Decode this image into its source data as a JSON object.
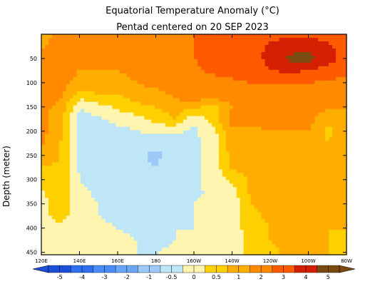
{
  "chart_data": {
    "type": "heatmap",
    "title": "Equatorial Temperature Anomaly (°C)",
    "subtitle": "Pentad centered on 20 SEP 2023",
    "ylabel": "Depth (meter)",
    "xlabel": "",
    "x_range_deg_east": [
      120,
      280
    ],
    "y_range_m": [
      0,
      455
    ],
    "x_ticks": [
      {
        "lon": 120,
        "label": "120E"
      },
      {
        "lon": 140,
        "label": "140E"
      },
      {
        "lon": 160,
        "label": "160E"
      },
      {
        "lon": 180,
        "label": "180"
      },
      {
        "lon": 200,
        "label": "160W"
      },
      {
        "lon": 220,
        "label": "140W"
      },
      {
        "lon": 240,
        "label": "120W"
      },
      {
        "lon": 260,
        "label": "100W"
      },
      {
        "lon": 280,
        "label": "80W"
      }
    ],
    "y_ticks": [
      50,
      100,
      150,
      200,
      250,
      300,
      350,
      400,
      450
    ],
    "colorbar": {
      "levels": [
        "-5",
        "-4",
        "-3",
        "-2",
        "-1",
        "-0.5",
        "0",
        "0.5",
        "1",
        "2",
        "3",
        "4",
        "5"
      ],
      "colors": [
        "#1c4fd8",
        "#2e6ff0",
        "#4a8cf5",
        "#6aa8f7",
        "#9cc9f8",
        "#bfe6f6",
        "#fff5b0",
        "#ffd000",
        "#ffae00",
        "#ff8a00",
        "#ff5a00",
        "#d42000",
        "#7a4a10"
      ]
    },
    "lons": [
      120,
      130,
      140,
      150,
      160,
      170,
      180,
      190,
      200,
      210,
      220,
      230,
      240,
      250,
      260,
      270,
      280
    ],
    "depths": [
      0,
      25,
      50,
      75,
      100,
      125,
      150,
      175,
      200,
      225,
      250,
      275,
      300,
      325,
      350,
      375,
      400,
      425,
      455
    ],
    "values": [
      [
        0.7,
        1.2,
        1.3,
        1.5,
        1.3,
        1.5,
        1.7,
        1.9,
        2,
        2,
        2.2,
        2.4,
        2.6,
        2.8,
        2.8,
        2.6,
        2.3
      ],
      [
        0.9,
        1.3,
        1.3,
        1.3,
        1.3,
        1.5,
        1.7,
        1.9,
        2,
        2.2,
        2.4,
        2.6,
        3.2,
        3.6,
        3.6,
        3.2,
        2.5
      ],
      [
        1.4,
        1.4,
        1.2,
        1.2,
        1.2,
        1.3,
        1.5,
        1.7,
        2,
        2.2,
        2.3,
        2.6,
        3.3,
        4.2,
        4.4,
        3.5,
        2.5
      ],
      [
        1.6,
        1.3,
        1,
        1,
        1,
        1.2,
        1.4,
        1.6,
        1.9,
        2.1,
        2.2,
        2.4,
        3,
        3.2,
        3,
        2.6,
        2.2
      ],
      [
        1.2,
        1.2,
        0.8,
        0.8,
        0.8,
        1,
        1.2,
        1.4,
        1.7,
        1.8,
        1.9,
        2,
        2.1,
        2.1,
        2,
        1.9,
        1.6
      ],
      [
        1.1,
        1.1,
        0.3,
        0.5,
        0.5,
        0.7,
        0.8,
        1.1,
        1.5,
        1.3,
        1.4,
        1.4,
        1.5,
        1.4,
        1.4,
        1.3,
        1.1
      ],
      [
        1.1,
        0.9,
        -0.5,
        -0.2,
        0.1,
        0.4,
        0.5,
        0.8,
        0.6,
        0.3,
        1,
        1.2,
        1.3,
        1.4,
        1.3,
        1.1,
        1
      ],
      [
        1.2,
        0.7,
        -0.7,
        -0.6,
        -0.3,
        -0.2,
        0.2,
        0.5,
        -0.4,
        0.2,
        1.2,
        1.1,
        1.2,
        1.1,
        1.2,
        0.6,
        0.9
      ],
      [
        1.2,
        0.6,
        -0.7,
        -0.8,
        -0.7,
        -0.5,
        -0.4,
        -0.4,
        -0.6,
        -0.2,
        0.9,
        0.9,
        1,
        1,
        1,
        0.4,
        0.7
      ],
      [
        1.1,
        0.5,
        -0.7,
        -0.9,
        -0.9,
        -0.8,
        -0.9,
        -0.7,
        -0.6,
        -0.3,
        0.8,
        0.8,
        0.8,
        0.8,
        0.8,
        0.5,
        0.7
      ],
      [
        0.9,
        0.5,
        -0.7,
        -0.9,
        -0.9,
        -0.9,
        -1.1,
        -0.8,
        -0.6,
        -0.3,
        0.7,
        0.7,
        0.7,
        0.7,
        0.7,
        0.6,
        0.7
      ],
      [
        0.5,
        0.4,
        -0.6,
        -0.8,
        -0.9,
        -0.9,
        -1,
        -0.8,
        -0.6,
        -0.3,
        0.6,
        0.7,
        0.7,
        0.7,
        0.7,
        0.6,
        0.6
      ],
      [
        0.3,
        0.4,
        -0.5,
        -0.7,
        -0.8,
        -0.8,
        -0.9,
        -0.8,
        -0.6,
        -0.3,
        0.1,
        0.6,
        0.7,
        0.7,
        0.7,
        0.6,
        0.6
      ],
      [
        -0.1,
        0.4,
        -0.4,
        -0.6,
        -0.7,
        -0.7,
        -0.8,
        -0.7,
        -0.6,
        -0.4,
        -0.2,
        0.6,
        0.7,
        0.7,
        0.7,
        0.6,
        0.6
      ],
      [
        -0.2,
        0.4,
        -0.4,
        -0.5,
        -0.6,
        -0.7,
        -0.7,
        -0.6,
        -0.5,
        -0.4,
        -0.3,
        0.5,
        0.6,
        0.7,
        0.7,
        0.6,
        0.5
      ],
      [
        -0.2,
        0.2,
        -0.3,
        -0.5,
        -0.6,
        -0.6,
        -0.6,
        -0.6,
        -0.5,
        -0.4,
        -0.3,
        0.4,
        0.6,
        0.7,
        0.6,
        0.5,
        0.5
      ],
      [
        -0.2,
        -0.1,
        -0.3,
        -0.4,
        -0.5,
        -0.6,
        -0.6,
        -0.5,
        -0.5,
        -0.4,
        -0.3,
        0.3,
        0.5,
        0.6,
        0.6,
        0.5,
        0.5
      ],
      [
        -0.2,
        -0.2,
        -0.3,
        -0.4,
        -0.4,
        -0.5,
        -0.6,
        -0.5,
        -0.4,
        -0.4,
        -0.3,
        0.2,
        0.5,
        0.6,
        0.6,
        0.5,
        0.4
      ],
      [
        -0.2,
        -0.2,
        -0.3,
        -0.3,
        -0.4,
        -0.5,
        -0.5,
        -0.4,
        -0.4,
        -0.3,
        -0.2,
        0.2,
        0.4,
        0.6,
        0.6,
        0.5,
        0.4
      ]
    ]
  }
}
